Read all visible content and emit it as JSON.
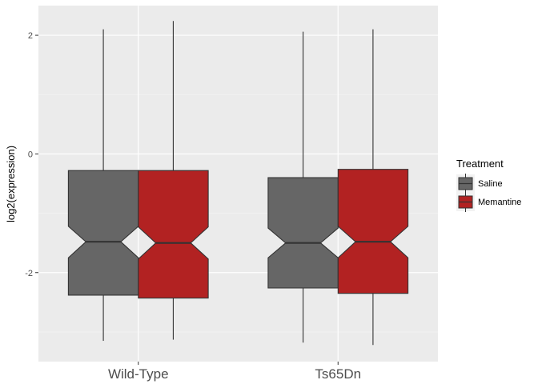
{
  "chart_data": {
    "type": "boxplot",
    "notched": true,
    "title": "",
    "xlabel": "",
    "ylabel": "log2(expression)",
    "ylim": [
      -3.5,
      2.5
    ],
    "yticks": [
      2,
      0,
      -2
    ],
    "ytick_labels": [
      "2",
      "0",
      "-2"
    ],
    "categories": [
      "Wild-Type",
      "Ts65Dn"
    ],
    "grid": true,
    "legend": {
      "title": "Treatment",
      "position": "right"
    },
    "series": [
      {
        "name": "Saline",
        "color": "#666666",
        "boxes": [
          {
            "category": "Wild-Type",
            "whisker_low": -3.15,
            "q1": -2.38,
            "notch_low": -1.75,
            "median": -1.48,
            "notch_high": -1.22,
            "q3": -0.28,
            "whisker_high": 2.1
          },
          {
            "category": "Ts65Dn",
            "whisker_low": -3.18,
            "q1": -2.26,
            "notch_low": -1.75,
            "median": -1.5,
            "notch_high": -1.25,
            "q3": -0.4,
            "whisker_high": 2.06
          }
        ]
      },
      {
        "name": "Memantine",
        "color": "#B22222",
        "boxes": [
          {
            "category": "Wild-Type",
            "whisker_low": -3.13,
            "q1": -2.43,
            "notch_low": -1.77,
            "median": -1.5,
            "notch_high": -1.23,
            "q3": -0.28,
            "whisker_high": 2.24
          },
          {
            "category": "Ts65Dn",
            "whisker_low": -3.22,
            "q1": -2.35,
            "notch_low": -1.75,
            "median": -1.48,
            "notch_high": -1.22,
            "q3": -0.26,
            "whisker_high": 2.1
          }
        ]
      }
    ]
  }
}
